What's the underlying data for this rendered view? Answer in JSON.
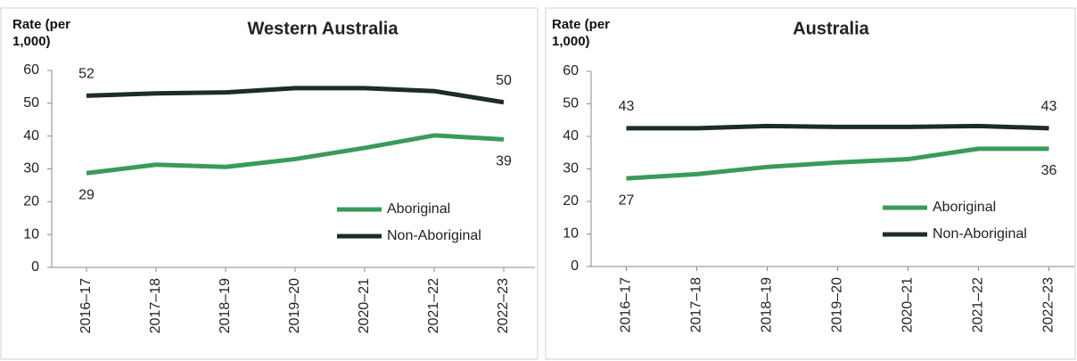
{
  "chart_data": [
    {
      "type": "line",
      "title": "Western Australia",
      "ylabel": "Rate (per 1,000)",
      "categories": [
        "2016–17",
        "2017–18",
        "2018–19",
        "2019–20",
        "2020–21",
        "2021–22",
        "2022–23"
      ],
      "series": [
        {
          "name": "Aboriginal",
          "color": "#3a9a5c",
          "values": [
            28.7,
            31.3,
            30.6,
            33.0,
            36.4,
            40.2,
            39.0
          ],
          "value_labels": [
            "29",
            null,
            null,
            null,
            null,
            null,
            "39"
          ]
        },
        {
          "name": "Non-Aboriginal",
          "color": "#1b2d24",
          "values": [
            52.3,
            53.0,
            53.3,
            54.6,
            54.6,
            53.7,
            50.3
          ],
          "value_labels": [
            "52",
            null,
            null,
            null,
            null,
            null,
            "50"
          ]
        }
      ],
      "ylim": [
        0,
        60
      ],
      "yticks": [
        0,
        10,
        20,
        30,
        40,
        50,
        60
      ],
      "legend": "lower right"
    },
    {
      "type": "line",
      "title": "Australia",
      "ylabel": "Rate (per 1,000)",
      "categories": [
        "2016–17",
        "2017–18",
        "2018–19",
        "2019–20",
        "2020–21",
        "2021–22",
        "2022–23"
      ],
      "series": [
        {
          "name": "Aboriginal",
          "color": "#3a9a5c",
          "values": [
            27.1,
            28.4,
            30.6,
            32.0,
            33.0,
            36.2,
            36.2
          ],
          "value_labels": [
            "27",
            null,
            null,
            null,
            null,
            null,
            "36"
          ]
        },
        {
          "name": "Non-Aboriginal",
          "color": "#1b2d24",
          "values": [
            42.5,
            42.5,
            43.2,
            42.9,
            42.9,
            43.2,
            42.5
          ],
          "value_labels": [
            "43",
            null,
            null,
            null,
            null,
            null,
            "43"
          ]
        }
      ],
      "ylim": [
        0,
        60
      ],
      "yticks": [
        0,
        10,
        20,
        30,
        40,
        50,
        60
      ],
      "legend": "lower right"
    }
  ]
}
